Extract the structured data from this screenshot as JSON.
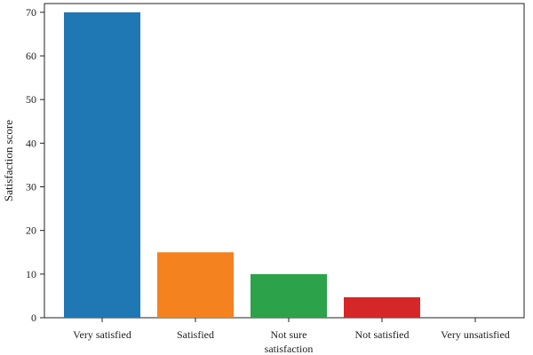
{
  "chart_data": {
    "type": "bar",
    "title": "",
    "xlabel": "",
    "ylabel": "Satisfaction score",
    "ylim": [
      0,
      72
    ],
    "yticks": [
      0,
      10,
      20,
      30,
      40,
      50,
      60,
      70
    ],
    "grid": false,
    "categories": [
      [
        "Very satisfied"
      ],
      [
        "Satisfied"
      ],
      [
        "Not sure",
        "satisfaction"
      ],
      [
        "Not satisfied"
      ],
      [
        "Very unsatisfied"
      ]
    ],
    "values": [
      70,
      15,
      10,
      4.7,
      0
    ],
    "colors": [
      "#1f77b4",
      "#f4821f",
      "#2ca24a",
      "#d62728",
      "#9467bd"
    ]
  }
}
